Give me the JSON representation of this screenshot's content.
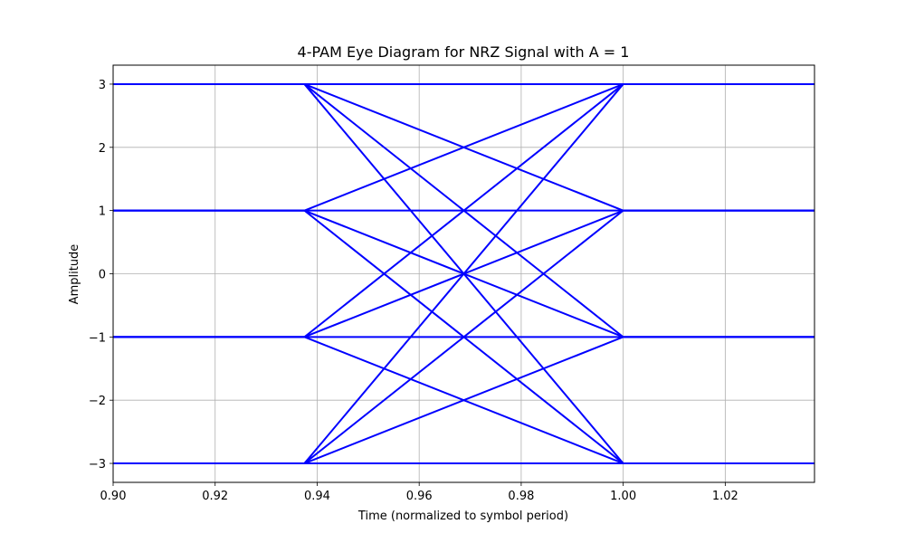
{
  "chart_data": {
    "type": "line",
    "title": "4-PAM Eye Diagram for NRZ Signal with A = 1",
    "xlabel": "Time (normalized to symbol period)",
    "ylabel": "Amplitude",
    "xlim": [
      0.9,
      1.0375
    ],
    "ylim": [
      -3.3,
      3.3
    ],
    "grid": true,
    "x_ticks": [
      0.9,
      0.92,
      0.94,
      0.96,
      0.98,
      1.0,
      1.02
    ],
    "x_tick_labels": [
      "0.90",
      "0.92",
      "0.94",
      "0.96",
      "0.98",
      "1.00",
      "1.02"
    ],
    "y_ticks": [
      3,
      2,
      1,
      0,
      -1,
      -2,
      -3
    ],
    "y_tick_labels": [
      "3",
      "2",
      "1",
      "0",
      "−1",
      "−2",
      "−3"
    ],
    "levels": [
      -3,
      -1,
      1,
      3
    ],
    "transition_start": 0.9375,
    "transition_end": 1.0,
    "x_start": 0.9,
    "x_end": 1.0375,
    "line_color": "#0000ff",
    "grid_color": "#b0b0b0"
  }
}
